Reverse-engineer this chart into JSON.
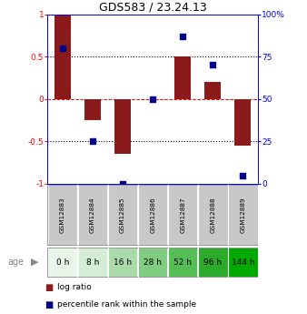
{
  "title": "GDS583 / 23.24.13",
  "samples": [
    "GSM12883",
    "GSM12884",
    "GSM12885",
    "GSM12886",
    "GSM12887",
    "GSM12888",
    "GSM12889"
  ],
  "ages": [
    "0 h",
    "8 h",
    "16 h",
    "28 h",
    "52 h",
    "96 h",
    "144 h"
  ],
  "log_ratio": [
    1.0,
    -0.25,
    -0.65,
    0.0,
    0.5,
    0.2,
    -0.55
  ],
  "percentile_rank": [
    80,
    25,
    0,
    50,
    87,
    70,
    5
  ],
  "bar_color": "#8B1A1A",
  "dot_color": "#00008B",
  "ylim": [
    -1.0,
    1.0
  ],
  "y2lim": [
    0,
    100
  ],
  "yticks": [
    -1,
    -0.5,
    0,
    0.5,
    1
  ],
  "ytick_labels": [
    "-1",
    "-0.5",
    "0",
    "0.5",
    "1"
  ],
  "y2ticks": [
    0,
    25,
    50,
    75,
    100
  ],
  "y2tick_labels": [
    "0",
    "25",
    "50",
    "75",
    "100%"
  ],
  "hline_dotted": [
    0.5,
    -0.5
  ],
  "hline_dashed": 0,
  "age_colors": [
    "#e8f5e8",
    "#d4edd4",
    "#aadaaa",
    "#80cc80",
    "#55bf55",
    "#2baa2b",
    "#00aa00"
  ],
  "gsm_bg_color": "#c8c8c8",
  "legend_items": [
    "log ratio",
    "percentile rank within the sample"
  ],
  "bar_width": 0.55
}
